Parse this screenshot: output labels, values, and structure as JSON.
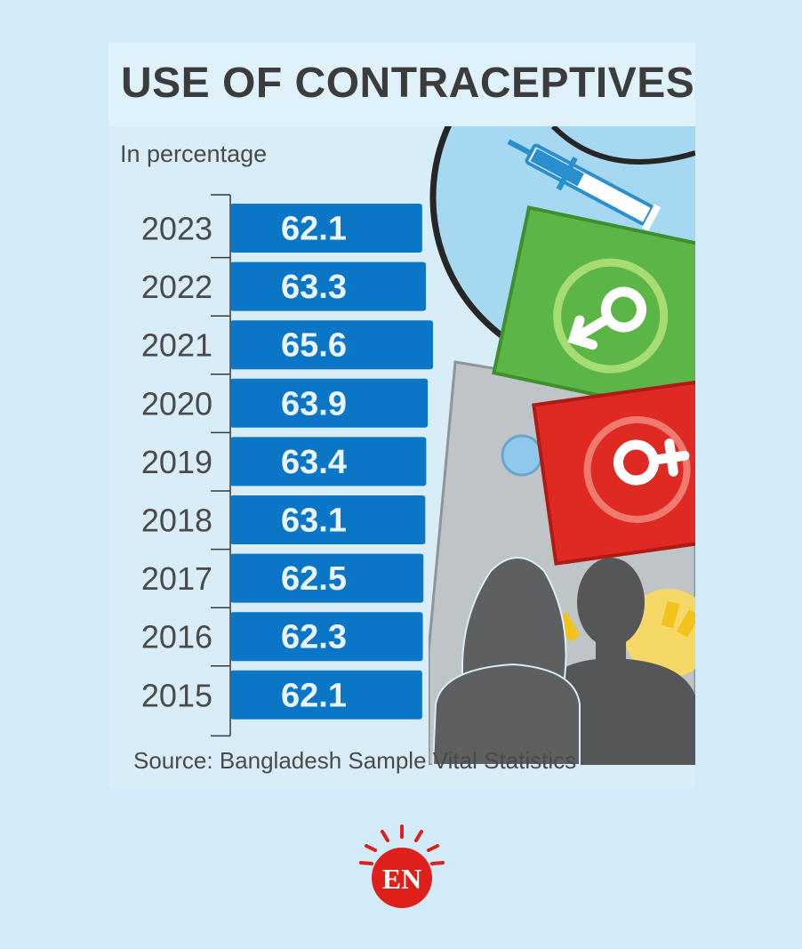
{
  "title": "USE OF CONTRACEPTIVES",
  "subtitle": "In percentage",
  "source": "Source: Bangladesh Sample Vital Statistics",
  "logo_text": "EN",
  "colors": {
    "bar": "#0b76c6",
    "bar_text": "#eaf4fb",
    "year_text": "#4a4a4a",
    "axis": "#3a3a3a"
  },
  "chart_data": {
    "type": "bar",
    "orientation": "horizontal",
    "title": "USE OF CONTRACEPTIVES",
    "subtitle": "In percentage",
    "categories": [
      "2023",
      "2022",
      "2021",
      "2020",
      "2019",
      "2018",
      "2017",
      "2016",
      "2015"
    ],
    "values": [
      62.1,
      63.3,
      65.6,
      63.9,
      63.4,
      63.1,
      62.5,
      62.3,
      62.1
    ],
    "ylabel": "In percentage",
    "source": "Source: Bangladesh Sample Vital Statistics"
  }
}
